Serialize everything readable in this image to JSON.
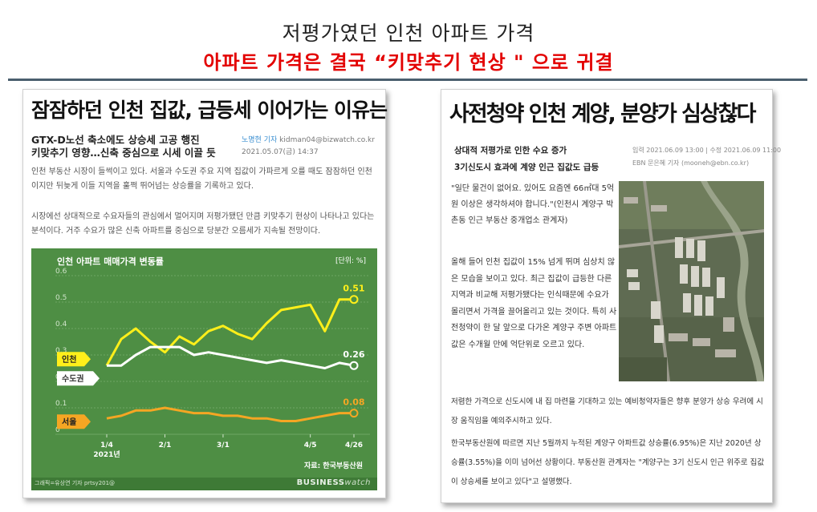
{
  "slide": {
    "title": "저평가였던 인천 아파트 가격",
    "subtitle": "아파트 가격은 결국 “키맞추기 현상 \" 으로 귀결"
  },
  "left_article": {
    "headline": "잠잠하던 인천 집값, 급등세 이어가는 이유는",
    "subhead_1": "GTX-D노선 축소에도 상승세 고공 행진",
    "subhead_2": "키맞추기 영향…신축 중심으로 시세 이끌 듯",
    "reporter": "노명현 기자",
    "email": "kidman04@bizwatch.co.kr",
    "date": "2021.05.07(금) 14:37",
    "paragraph_1": "인천 부동산 시장이 들썩이고 있다. 서울과 수도권 주요 지역 집값이 가파르게 오를 때도 잠잠하던 인천이지만 뒤늦게 이들 지역을 훌쩍 뛰어넘는 상승률을 기록하고 있다.",
    "paragraph_2": "시장에선 상대적으로 수요자들의 관심에서 멀어지며 저평가됐던 만큼 키맞추기 현상이 나타나고 있다는 분석이다. 거주 수요가 많은 신축 아파트를 중심으로 당분간 오름세가 지속될 전망이다.",
    "chart_credit": "그래픽=유상연 기자 prtsy201@",
    "brand_main": "BUSINESS",
    "brand_sub": "watch"
  },
  "chart_data": {
    "type": "line",
    "title": "인천 아파트 매매가격 변동률",
    "unit_label": "[단위: %]",
    "source": "자료: 한국부동산원",
    "ylim": [
      0,
      0.6
    ],
    "yticks": [
      "0.6",
      "0.5",
      "0.4",
      "0.3",
      "0.2",
      "0.1",
      "0"
    ],
    "x_tick_labels": [
      "1/4",
      "2/1",
      "3/1",
      "4/5",
      "4/26"
    ],
    "x_year_label": "2021년",
    "grid": true,
    "series": [
      {
        "name": "인천",
        "color": "#ffef1a",
        "values": [
          0.26,
          0.36,
          0.4,
          0.35,
          0.31,
          0.37,
          0.34,
          0.39,
          0.41,
          0.38,
          0.36,
          0.42,
          0.47,
          0.48,
          0.49,
          0.39,
          0.51,
          0.51
        ],
        "end_label": "0.51"
      },
      {
        "name": "수도권",
        "color": "#ffffff",
        "values": [
          0.26,
          0.26,
          0.3,
          0.33,
          0.33,
          0.33,
          0.3,
          0.31,
          0.3,
          0.29,
          0.28,
          0.27,
          0.28,
          0.27,
          0.26,
          0.25,
          0.27,
          0.26
        ],
        "end_label": "0.26"
      },
      {
        "name": "서울",
        "color": "#f5a623",
        "values": [
          0.06,
          0.07,
          0.09,
          0.09,
          0.1,
          0.09,
          0.08,
          0.08,
          0.07,
          0.07,
          0.06,
          0.06,
          0.05,
          0.05,
          0.06,
          0.07,
          0.08,
          0.08
        ],
        "end_label": "0.08"
      }
    ]
  },
  "right_article": {
    "headline": "사전청약 인천 계양, 분양가 심상찮다",
    "subhead_1": "상대적 저평가로 인한 수요 증가",
    "subhead_2": "3기신도시 효과에 계양 인근 집값도 급등",
    "meta_1": "입력 2021.06.09 13:00 | 수정 2021.06.09 11:00",
    "meta_2": "EBN 문은혜 기자 (mooneh@ebn.co.kr)",
    "quote": "\"일단 물건이 없어요. 있어도 요즘엔 66㎡대 5억원 이상은 생각하셔야 합니다.\"(인천시 계양구 박촌동 인근 부동산 중개업소 관계자)",
    "paragraph_1": "올해 들어 인천 집값이 15% 넘게 뛰며 심상치 않은 모습을 보이고 있다. 최근 집값이 급등한 다른 지역과 비교해 저평가됐다는 인식때문에 수요가 몰리면서 가격을 끌어올리고 있는 것이다. 특히 사전청약이 한 달 앞으로 다가온 계양구 주변 아파트값은 수개월 만에 억단위로 오르고 있다.",
    "paragraph_2": "저렴한 가격으로 신도시에 내 집 마련을 기대하고 있는 예비청약자들은 향후 분양가 상승 우려에 시장 움직임을 예의주시하고 있다.",
    "paragraph_3": "한국부동산원에 따르면 지난 5월까지 누적된 계양구 아파트값 상승률(6.95%)은 지난 2020년 상승률(3.55%)을 이미 넘어선 상황이다. 부동산원 관계자는 \"계양구는 3기 신도시 인근 위주로 집값이 상승세를 보이고 있다\"고 설명했다."
  }
}
